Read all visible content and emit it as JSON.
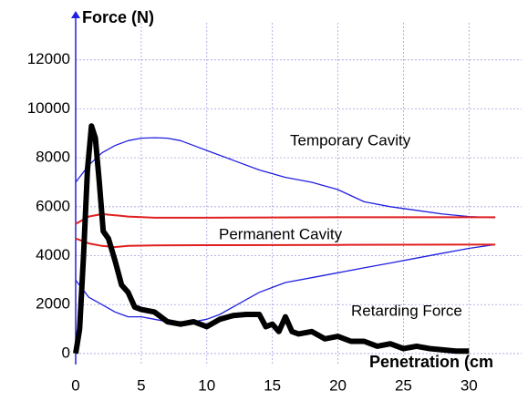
{
  "chart_data": {
    "type": "line",
    "y_label": "Force (N)",
    "x_label": "Penetration (cm",
    "annotations": [
      "Temporary Cavity",
      "Permanent Cavity",
      "Retarding Force"
    ],
    "xlim": [
      0,
      34.5
    ],
    "ylim": [
      -450,
      14000
    ],
    "xticks": [
      0,
      5,
      10,
      15,
      20,
      25,
      30
    ],
    "yticks": [
      0,
      2000,
      4000,
      6000,
      8000,
      10000,
      12000
    ],
    "grid": true,
    "series": [
      {
        "color": "#2020e0",
        "width": 1.3,
        "x": [
          0,
          1,
          2,
          3,
          4,
          5,
          6,
          7,
          8,
          9,
          10,
          12,
          14,
          16,
          18,
          20,
          22,
          24,
          26,
          28,
          30,
          32
        ],
        "values": [
          7000,
          7700,
          8200,
          8500,
          8700,
          8800,
          8820,
          8800,
          8700,
          8500,
          8300,
          7900,
          7500,
          7200,
          7000,
          6700,
          6200,
          6000,
          5850,
          5700,
          5600,
          5550
        ]
      },
      {
        "color": "#2020e0",
        "width": 1.3,
        "x": [
          0,
          1,
          2,
          3,
          4,
          5,
          6,
          7,
          8,
          9,
          10,
          11,
          12,
          13,
          14,
          15,
          16,
          18,
          20,
          22,
          24,
          26,
          28,
          30,
          32
        ],
        "values": [
          3000,
          2300,
          2000,
          1700,
          1500,
          1500,
          1400,
          1300,
          1300,
          1300,
          1400,
          1600,
          1900,
          2200,
          2500,
          2700,
          2900,
          3100,
          3300,
          3500,
          3700,
          3900,
          4100,
          4300,
          4450
        ]
      },
      {
        "color": "#e02020",
        "width": 2,
        "x": [
          0,
          1,
          2,
          3,
          4,
          6,
          10,
          15,
          20,
          25,
          30,
          32
        ],
        "values": [
          5300,
          5600,
          5700,
          5650,
          5600,
          5550,
          5550,
          5560,
          5570,
          5570,
          5570,
          5570
        ]
      },
      {
        "color": "#e02020",
        "width": 2,
        "x": [
          0,
          1,
          2,
          3,
          4,
          6,
          10,
          20,
          30,
          32
        ],
        "values": [
          4700,
          4500,
          4400,
          4350,
          4400,
          4420,
          4430,
          4440,
          4450,
          4450
        ]
      },
      {
        "color": "#000000",
        "width": 6,
        "x": [
          0,
          0.3,
          0.6,
          0.9,
          1.2,
          1.5,
          1.8,
          2.1,
          2.5,
          3,
          3.5,
          4,
          4.5,
          5,
          6,
          7,
          8,
          9,
          10,
          11,
          12,
          13,
          14,
          14.5,
          15,
          15.5,
          16,
          16.5,
          17,
          18,
          19,
          20,
          21,
          22,
          23,
          24,
          25,
          26,
          27,
          28,
          29,
          30
        ],
        "values": [
          0,
          1000,
          4000,
          7500,
          9300,
          8800,
          7000,
          5000,
          4700,
          3800,
          2800,
          2500,
          1900,
          1800,
          1700,
          1300,
          1200,
          1300,
          1100,
          1400,
          1550,
          1600,
          1600,
          1100,
          1200,
          900,
          1500,
          900,
          800,
          900,
          600,
          700,
          500,
          500,
          300,
          400,
          200,
          300,
          200,
          150,
          100,
          100
        ]
      }
    ]
  }
}
